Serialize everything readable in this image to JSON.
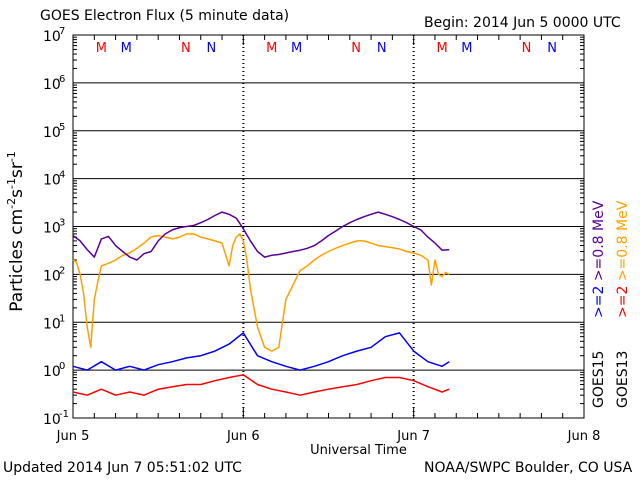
{
  "header": {
    "title": "GOES Electron Flux (5 minute data)",
    "begin": "Begin: 2014 Jun 5 0000 UTC"
  },
  "footer": {
    "updated": "Updated 2014 Jun  7 05:51:02 UTC",
    "credit": "NOAA/SWPC Boulder, CO USA"
  },
  "colors": {
    "goes15_2mev": "#0000ff",
    "goes15_08mev": "#5a0096",
    "goes13_2mev": "#ff0000",
    "goes13_08mev": "#ffa000",
    "threshold": "#000000",
    "marker_m": "#ff0000",
    "marker_m_alt": "#0000ff",
    "marker_n": "#ff0000",
    "marker_n_alt": "#0000ff"
  },
  "chart_data": {
    "type": "line",
    "title": "GOES Electron Flux (5 minute data)",
    "xlabel": "Universal Time",
    "ylabel": "Particles cm-2 s-1 sr-1",
    "ylabel_parts": {
      "main": "Particles cm",
      "exp1": "-2",
      "s": "s",
      "exp2": "-1",
      "sr": "sr",
      "exp3": "-1"
    },
    "yscale": "log",
    "ylim": [
      0.1,
      10000000
    ],
    "xlim": [
      0,
      72
    ],
    "x_units": "hours since 2014 Jun 5 0000 UTC",
    "x_ticks": [
      {
        "x": 0,
        "label": "Jun 5"
      },
      {
        "x": 24,
        "label": "Jun 6"
      },
      {
        "x": 48,
        "label": "Jun 7"
      },
      {
        "x": 72,
        "label": "Jun 8"
      }
    ],
    "y_ticks": [
      {
        "value": 0.1,
        "base": "10",
        "exp": "-1"
      },
      {
        "value": 1,
        "base": "10",
        "exp": "0"
      },
      {
        "value": 10,
        "base": "10",
        "exp": "1"
      },
      {
        "value": 100,
        "base": "10",
        "exp": "2"
      },
      {
        "value": 1000,
        "base": "10",
        "exp": "3"
      },
      {
        "value": 10000,
        "base": "10",
        "exp": "4"
      },
      {
        "value": 100000,
        "base": "10",
        "exp": "5"
      },
      {
        "value": 1000000,
        "base": "10",
        "exp": "6"
      },
      {
        "value": 10000000,
        "base": "10",
        "exp": "7"
      }
    ],
    "grid": true,
    "threshold": 1000,
    "day_divider_x": [
      24,
      48
    ],
    "markers": [
      {
        "x": 4.0,
        "label": "M",
        "color": "#ff0000"
      },
      {
        "x": 7.5,
        "label": "M",
        "color": "#0000ff"
      },
      {
        "x": 15.9,
        "label": "N",
        "color": "#ff0000"
      },
      {
        "x": 19.5,
        "label": "N",
        "color": "#0000ff"
      },
      {
        "x": 28.0,
        "label": "M",
        "color": "#ff0000"
      },
      {
        "x": 31.5,
        "label": "M",
        "color": "#0000ff"
      },
      {
        "x": 39.9,
        "label": "N",
        "color": "#ff0000"
      },
      {
        "x": 43.5,
        "label": "N",
        "color": "#0000ff"
      },
      {
        "x": 52.0,
        "label": "M",
        "color": "#ff0000"
      },
      {
        "x": 55.5,
        "label": "M",
        "color": "#0000ff"
      },
      {
        "x": 63.9,
        "label": "N",
        "color": "#ff0000"
      },
      {
        "x": 67.5,
        "label": "N",
        "color": "#0000ff"
      }
    ],
    "legend": {
      "placement": "right",
      "groups": [
        {
          "name": "GOES15",
          "items": [
            {
              "label": ">=2",
              "color": "#0000ff"
            },
            {
              "label": ">=0.8 MeV",
              "color": "#5a0096"
            }
          ]
        },
        {
          "name": "GOES13",
          "items": [
            {
              "label": ">=2",
              "color": "#ff0000"
            },
            {
              "label": ">=0.8 MeV",
              "color": "#ffa000"
            }
          ]
        }
      ]
    },
    "series": [
      {
        "name": "GOES15 >=0.8 MeV",
        "color": "#5a0096",
        "x": [
          0,
          1,
          2,
          3,
          4,
          5,
          6,
          7,
          8,
          9,
          10,
          11,
          12,
          13,
          14,
          15,
          16,
          17,
          18,
          19,
          20,
          21,
          22,
          23,
          24,
          25,
          26,
          27,
          28,
          29,
          30,
          31,
          32,
          33,
          34,
          35,
          36,
          37,
          38,
          39,
          40,
          41,
          42,
          43,
          44,
          45,
          46,
          47,
          48,
          49,
          50,
          51,
          52,
          53
        ],
        "values": [
          650,
          500,
          330,
          230,
          550,
          620,
          400,
          300,
          230,
          200,
          270,
          300,
          500,
          700,
          850,
          950,
          1000,
          1050,
          1200,
          1400,
          1700,
          2000,
          1800,
          1500,
          900,
          500,
          300,
          230,
          250,
          260,
          280,
          300,
          320,
          350,
          400,
          500,
          650,
          800,
          1000,
          1200,
          1400,
          1600,
          1800,
          2000,
          1800,
          1600,
          1400,
          1200,
          1000,
          850,
          600,
          450,
          320,
          330
        ]
      },
      {
        "name": "GOES13 >=0.8 MeV",
        "color": "#ffa000",
        "x": [
          0,
          0.5,
          1,
          1.5,
          2,
          2.5,
          3,
          3.5,
          4,
          5,
          6,
          7,
          8,
          9,
          10,
          11,
          12,
          13,
          14,
          15,
          16,
          17,
          18,
          19,
          20,
          21,
          22,
          22.5,
          23,
          23.5,
          24,
          24.5,
          25,
          26,
          27,
          28,
          29,
          30,
          31,
          32,
          33,
          34,
          35,
          36,
          37,
          38,
          39,
          40,
          41,
          42,
          43,
          44,
          45,
          46,
          47,
          48,
          49,
          50,
          50.5,
          51,
          51.5,
          52,
          52.5,
          53
        ],
        "values": [
          200,
          180,
          100,
          40,
          8,
          3,
          30,
          70,
          150,
          170,
          200,
          250,
          280,
          350,
          450,
          600,
          650,
          600,
          550,
          600,
          700,
          700,
          600,
          550,
          500,
          450,
          150,
          400,
          600,
          700,
          500,
          200,
          50,
          8,
          3,
          2.5,
          3,
          30,
          60,
          120,
          150,
          200,
          250,
          300,
          350,
          400,
          450,
          500,
          500,
          450,
          400,
          380,
          360,
          340,
          300,
          280,
          250,
          200,
          60,
          200,
          100,
          90,
          110,
          100
        ]
      },
      {
        "name": "GOES15 >=2",
        "color": "#0000ff",
        "x": [
          0,
          2,
          4,
          6,
          8,
          10,
          12,
          14,
          16,
          18,
          20,
          22,
          24,
          26,
          28,
          30,
          32,
          34,
          36,
          38,
          40,
          42,
          44,
          46,
          48,
          50,
          52,
          53
        ],
        "values": [
          1.2,
          1.0,
          1.5,
          1.0,
          1.2,
          1.0,
          1.3,
          1.5,
          1.8,
          2.0,
          2.5,
          3.5,
          6.0,
          2.0,
          1.5,
          1.2,
          1.0,
          1.2,
          1.5,
          2.0,
          2.5,
          3.0,
          5.0,
          6.0,
          2.5,
          1.5,
          1.2,
          1.5
        ]
      },
      {
        "name": "GOES13 >=2",
        "color": "#ff0000",
        "x": [
          0,
          2,
          4,
          6,
          8,
          10,
          12,
          14,
          16,
          18,
          20,
          22,
          24,
          26,
          28,
          30,
          32,
          34,
          36,
          38,
          40,
          42,
          44,
          46,
          48,
          50,
          52,
          53
        ],
        "values": [
          0.35,
          0.3,
          0.4,
          0.3,
          0.35,
          0.3,
          0.4,
          0.45,
          0.5,
          0.5,
          0.6,
          0.7,
          0.8,
          0.5,
          0.4,
          0.35,
          0.3,
          0.35,
          0.4,
          0.45,
          0.5,
          0.6,
          0.7,
          0.7,
          0.6,
          0.45,
          0.35,
          0.4
        ]
      }
    ]
  }
}
